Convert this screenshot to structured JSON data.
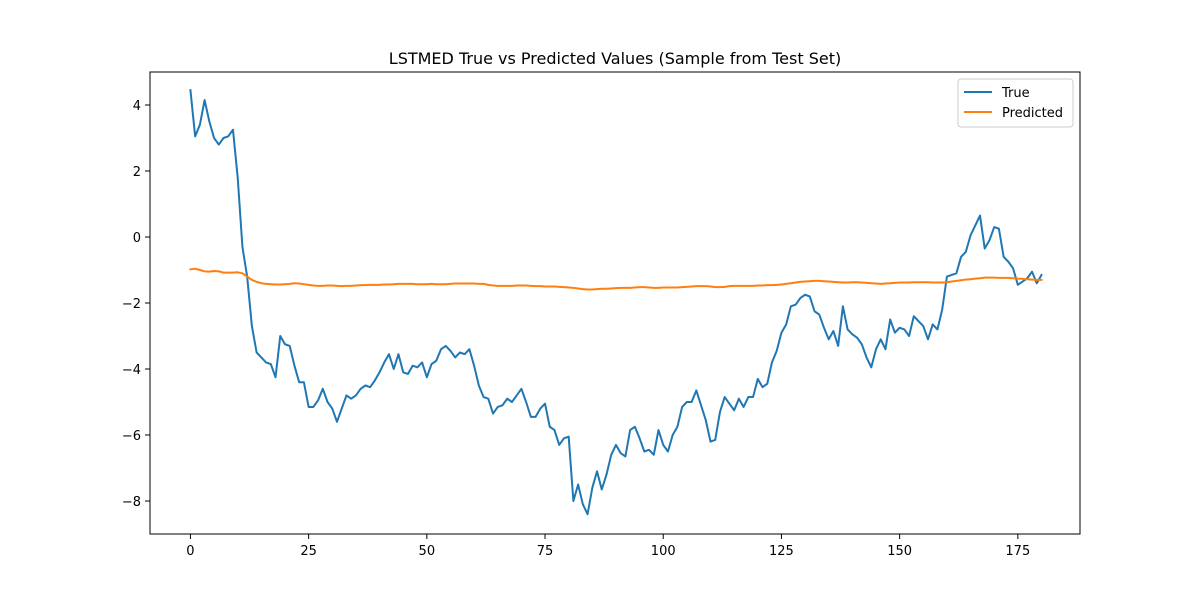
{
  "chart_data": {
    "type": "line",
    "title": "LSTMED True vs Predicted Values (Sample from Test Set)",
    "xlabel": "",
    "ylabel": "",
    "xlim": [
      -8.55,
      188.15
    ],
    "ylim": [
      -9.0,
      5.0
    ],
    "x_ticks": [
      0,
      25,
      50,
      75,
      100,
      125,
      150,
      175
    ],
    "y_ticks": [
      -8,
      -6,
      -4,
      -2,
      0,
      2,
      4
    ],
    "grid": false,
    "legend_position": "top-right",
    "colors": {
      "True": "#1f77b4",
      "Predicted": "#ff7f0e"
    },
    "x": [
      0,
      1,
      2,
      3,
      4,
      5,
      6,
      7,
      8,
      9,
      10,
      11,
      12,
      13,
      14,
      15,
      16,
      17,
      18,
      19,
      20,
      21,
      22,
      23,
      24,
      25,
      26,
      27,
      28,
      29,
      30,
      31,
      32,
      33,
      34,
      35,
      36,
      37,
      38,
      39,
      40,
      41,
      42,
      43,
      44,
      45,
      46,
      47,
      48,
      49,
      50,
      51,
      52,
      53,
      54,
      55,
      56,
      57,
      58,
      59,
      60,
      61,
      62,
      63,
      64,
      65,
      66,
      67,
      68,
      69,
      70,
      71,
      72,
      73,
      74,
      75,
      76,
      77,
      78,
      79,
      80,
      81,
      82,
      83,
      84,
      85,
      86,
      87,
      88,
      89,
      90,
      91,
      92,
      93,
      94,
      95,
      96,
      97,
      98,
      99,
      100,
      101,
      102,
      103,
      104,
      105,
      106,
      107,
      108,
      109,
      110,
      111,
      112,
      113,
      114,
      115,
      116,
      117,
      118,
      119,
      120,
      121,
      122,
      123,
      124,
      125,
      126,
      127,
      128,
      129,
      130,
      131,
      132,
      133,
      134,
      135,
      136,
      137,
      138,
      139,
      140,
      141,
      142,
      143,
      144,
      145,
      146,
      147,
      148,
      149,
      150,
      151,
      152,
      153,
      154,
      155,
      156,
      157,
      158,
      159,
      160,
      161,
      162,
      163,
      164,
      165,
      166,
      167,
      168,
      169,
      170,
      171,
      172,
      173,
      174,
      175,
      176,
      177,
      178,
      179,
      180
    ],
    "series": [
      {
        "name": "True",
        "values": [
          4.45,
          3.05,
          3.4,
          4.15,
          3.5,
          3.0,
          2.8,
          3.0,
          3.05,
          3.25,
          1.8,
          -0.3,
          -1.2,
          -2.7,
          -3.5,
          -3.65,
          -3.8,
          -3.85,
          -4.25,
          -3.0,
          -3.25,
          -3.3,
          -3.9,
          -4.4,
          -4.4,
          -5.15,
          -5.15,
          -4.95,
          -4.6,
          -5.0,
          -5.2,
          -5.6,
          -5.2,
          -4.8,
          -4.9,
          -4.8,
          -4.6,
          -4.5,
          -4.55,
          -4.35,
          -4.1,
          -3.8,
          -3.55,
          -4.0,
          -3.55,
          -4.1,
          -4.15,
          -3.9,
          -3.95,
          -3.8,
          -4.25,
          -3.85,
          -3.75,
          -3.4,
          -3.3,
          -3.45,
          -3.65,
          -3.5,
          -3.55,
          -3.4,
          -3.9,
          -4.5,
          -4.85,
          -4.9,
          -5.35,
          -5.15,
          -5.1,
          -4.9,
          -5.0,
          -4.8,
          -4.6,
          -5.0,
          -5.45,
          -5.45,
          -5.2,
          -5.05,
          -5.75,
          -5.85,
          -6.3,
          -6.1,
          -6.05,
          -8.0,
          -7.5,
          -8.1,
          -8.4,
          -7.6,
          -7.1,
          -7.65,
          -7.2,
          -6.6,
          -6.3,
          -6.55,
          -6.65,
          -5.85,
          -5.75,
          -6.1,
          -6.5,
          -6.45,
          -6.6,
          -5.85,
          -6.3,
          -6.5,
          -6.0,
          -5.75,
          -5.15,
          -5.0,
          -5.0,
          -4.65,
          -5.1,
          -5.55,
          -6.2,
          -6.15,
          -5.3,
          -4.85,
          -5.05,
          -5.25,
          -4.9,
          -5.15,
          -4.85,
          -4.85,
          -4.3,
          -4.55,
          -4.45,
          -3.8,
          -3.45,
          -2.9,
          -2.65,
          -2.1,
          -2.05,
          -1.85,
          -1.75,
          -1.8,
          -2.25,
          -2.35,
          -2.75,
          -3.1,
          -2.85,
          -3.3,
          -2.1,
          -2.8,
          -2.95,
          -3.05,
          -3.25,
          -3.65,
          -3.95,
          -3.4,
          -3.1,
          -3.4,
          -2.5,
          -2.9,
          -2.75,
          -2.8,
          -3.0,
          -2.4,
          -2.55,
          -2.7,
          -3.1,
          -2.65,
          -2.8,
          -2.2,
          -1.2,
          -1.15,
          -1.1,
          -0.6,
          -0.45,
          0.05,
          0.35,
          0.65,
          -0.35,
          -0.1,
          0.3,
          0.25,
          -0.6,
          -0.75,
          -0.95,
          -1.45,
          -1.35,
          -1.25,
          -1.05,
          -1.4,
          -1.15
        ]
      },
      {
        "name": "Predicted",
        "values": [
          -0.98,
          -0.96,
          -1.0,
          -1.04,
          -1.05,
          -1.03,
          -1.04,
          -1.08,
          -1.08,
          -1.08,
          -1.07,
          -1.1,
          -1.2,
          -1.3,
          -1.36,
          -1.4,
          -1.42,
          -1.43,
          -1.44,
          -1.44,
          -1.43,
          -1.42,
          -1.4,
          -1.41,
          -1.43,
          -1.45,
          -1.47,
          -1.48,
          -1.48,
          -1.47,
          -1.47,
          -1.48,
          -1.49,
          -1.48,
          -1.48,
          -1.47,
          -1.46,
          -1.46,
          -1.45,
          -1.45,
          -1.45,
          -1.44,
          -1.44,
          -1.43,
          -1.42,
          -1.42,
          -1.42,
          -1.42,
          -1.43,
          -1.43,
          -1.43,
          -1.42,
          -1.43,
          -1.43,
          -1.43,
          -1.42,
          -1.41,
          -1.41,
          -1.41,
          -1.41,
          -1.41,
          -1.42,
          -1.42,
          -1.45,
          -1.47,
          -1.48,
          -1.48,
          -1.48,
          -1.48,
          -1.47,
          -1.47,
          -1.47,
          -1.48,
          -1.49,
          -1.49,
          -1.5,
          -1.5,
          -1.5,
          -1.51,
          -1.52,
          -1.53,
          -1.54,
          -1.56,
          -1.58,
          -1.59,
          -1.59,
          -1.58,
          -1.57,
          -1.57,
          -1.56,
          -1.55,
          -1.54,
          -1.54,
          -1.54,
          -1.53,
          -1.52,
          -1.52,
          -1.53,
          -1.54,
          -1.54,
          -1.53,
          -1.53,
          -1.53,
          -1.53,
          -1.52,
          -1.51,
          -1.5,
          -1.49,
          -1.49,
          -1.49,
          -1.5,
          -1.52,
          -1.52,
          -1.51,
          -1.49,
          -1.48,
          -1.48,
          -1.48,
          -1.48,
          -1.48,
          -1.47,
          -1.47,
          -1.46,
          -1.46,
          -1.45,
          -1.44,
          -1.42,
          -1.4,
          -1.38,
          -1.36,
          -1.35,
          -1.34,
          -1.33,
          -1.33,
          -1.34,
          -1.35,
          -1.36,
          -1.37,
          -1.38,
          -1.38,
          -1.37,
          -1.37,
          -1.38,
          -1.39,
          -1.4,
          -1.41,
          -1.42,
          -1.41,
          -1.4,
          -1.39,
          -1.38,
          -1.38,
          -1.38,
          -1.37,
          -1.37,
          -1.37,
          -1.37,
          -1.38,
          -1.38,
          -1.38,
          -1.37,
          -1.35,
          -1.33,
          -1.31,
          -1.29,
          -1.28,
          -1.26,
          -1.25,
          -1.23,
          -1.23,
          -1.23,
          -1.24,
          -1.24,
          -1.24,
          -1.25,
          -1.26,
          -1.27,
          -1.28,
          -1.29,
          -1.3,
          -1.3
        ]
      }
    ]
  }
}
